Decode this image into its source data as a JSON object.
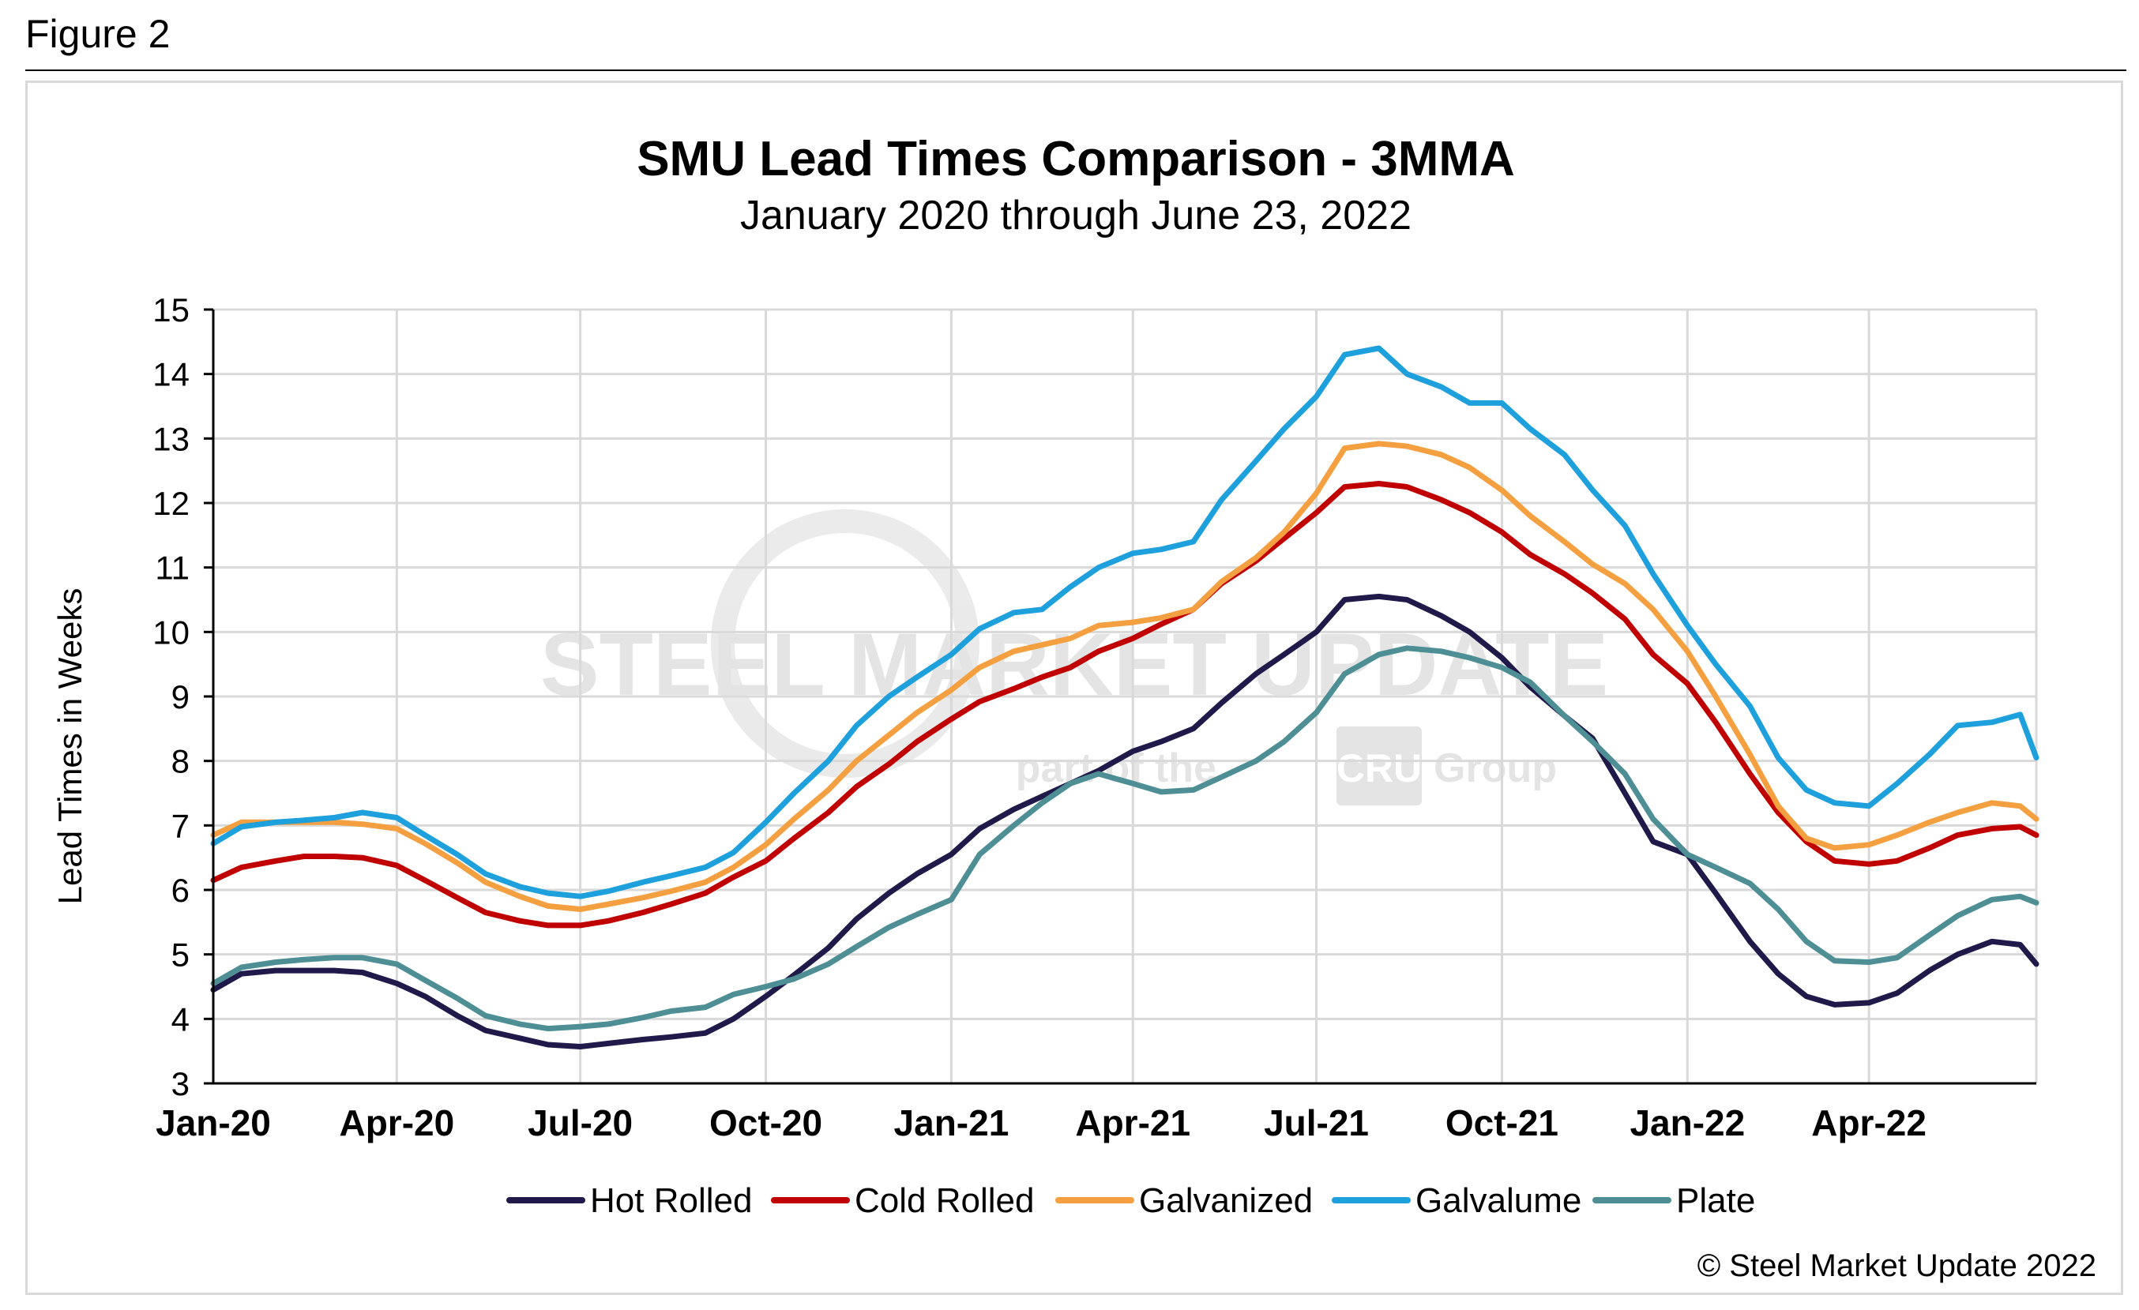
{
  "figure_label": "Figure 2",
  "copyright": "© Steel Market Update 2022",
  "watermark": {
    "main": "STEEL MARKET UPDATE",
    "sub_before": "part of the",
    "sub_logo": "CRU",
    "sub_after": "Group"
  },
  "colors": {
    "grid": "#d9d9d9",
    "axis": "#000000",
    "hot_rolled": "#1f1a4a",
    "cold_rolled": "#c00000",
    "galvanized": "#f4a040",
    "galvalume": "#1ea0dc",
    "plate": "#4d8f94"
  },
  "chart_data": {
    "type": "line",
    "title": "SMU Lead Times Comparison - 3MMA",
    "subtitle": "January 2020 through June 23, 2022",
    "xlabel": "",
    "ylabel": "Lead Times in Weeks",
    "ylim": [
      3,
      15
    ],
    "yticks": [
      3,
      4,
      5,
      6,
      7,
      8,
      9,
      10,
      11,
      12,
      13,
      14,
      15
    ],
    "x_range": [
      "2020-01-01",
      "2022-06-23"
    ],
    "xticks": [
      {
        "date": "2020-01-01",
        "label": "Jan-20"
      },
      {
        "date": "2020-04-01",
        "label": "Apr-20"
      },
      {
        "date": "2020-07-01",
        "label": "Jul-20"
      },
      {
        "date": "2020-10-01",
        "label": "Oct-20"
      },
      {
        "date": "2021-01-01",
        "label": "Jan-21"
      },
      {
        "date": "2021-04-01",
        "label": "Apr-21"
      },
      {
        "date": "2021-07-01",
        "label": "Jul-21"
      },
      {
        "date": "2021-10-01",
        "label": "Oct-21"
      },
      {
        "date": "2022-01-01",
        "label": "Jan-22"
      },
      {
        "date": "2022-04-01",
        "label": "Apr-22"
      }
    ],
    "grid": true,
    "legend_position": "bottom",
    "x": [
      "2020-01-01",
      "2020-01-15",
      "2020-02-01",
      "2020-02-15",
      "2020-03-01",
      "2020-03-15",
      "2020-04-01",
      "2020-04-15",
      "2020-05-01",
      "2020-05-15",
      "2020-06-01",
      "2020-06-15",
      "2020-07-01",
      "2020-07-15",
      "2020-08-01",
      "2020-08-15",
      "2020-09-01",
      "2020-09-15",
      "2020-10-01",
      "2020-10-15",
      "2020-11-01",
      "2020-11-15",
      "2020-12-01",
      "2020-12-15",
      "2021-01-01",
      "2021-01-15",
      "2021-02-01",
      "2021-02-15",
      "2021-03-01",
      "2021-03-15",
      "2021-04-01",
      "2021-04-15",
      "2021-05-01",
      "2021-05-15",
      "2021-06-01",
      "2021-06-15",
      "2021-07-01",
      "2021-07-15",
      "2021-08-01",
      "2021-08-15",
      "2021-09-01",
      "2021-09-15",
      "2021-10-01",
      "2021-10-15",
      "2021-11-01",
      "2021-11-15",
      "2021-12-01",
      "2021-12-15",
      "2022-01-01",
      "2022-01-15",
      "2022-02-01",
      "2022-02-15",
      "2022-03-01",
      "2022-03-15",
      "2022-04-01",
      "2022-04-15",
      "2022-05-01",
      "2022-05-15",
      "2022-06-01",
      "2022-06-15",
      "2022-06-23"
    ],
    "series": [
      {
        "name": "Hot Rolled",
        "color_key": "hot_rolled",
        "values": [
          4.45,
          4.7,
          4.75,
          4.75,
          4.75,
          4.72,
          4.55,
          4.35,
          4.05,
          3.82,
          3.7,
          3.6,
          3.57,
          3.62,
          3.68,
          3.72,
          3.78,
          4.0,
          4.35,
          4.68,
          5.1,
          5.55,
          5.95,
          6.25,
          6.55,
          6.95,
          7.25,
          7.45,
          7.65,
          7.85,
          8.15,
          8.3,
          8.5,
          8.9,
          9.35,
          9.65,
          10.0,
          10.5,
          10.55,
          10.5,
          10.25,
          10.0,
          9.6,
          9.15,
          8.7,
          8.35,
          7.5,
          6.75,
          6.55,
          5.95,
          5.2,
          4.7,
          4.35,
          4.22,
          4.25,
          4.4,
          4.75,
          5.0,
          5.2,
          5.15,
          4.85
        ]
      },
      {
        "name": "Cold Rolled",
        "color_key": "cold_rolled",
        "values": [
          6.15,
          6.35,
          6.45,
          6.52,
          6.52,
          6.5,
          6.38,
          6.15,
          5.88,
          5.65,
          5.52,
          5.45,
          5.45,
          5.52,
          5.65,
          5.78,
          5.95,
          6.2,
          6.45,
          6.8,
          7.2,
          7.6,
          7.95,
          8.3,
          8.65,
          8.92,
          9.12,
          9.3,
          9.45,
          9.7,
          9.9,
          10.12,
          10.35,
          10.75,
          11.1,
          11.45,
          11.85,
          12.25,
          12.3,
          12.25,
          12.05,
          11.85,
          11.55,
          11.2,
          10.9,
          10.6,
          10.2,
          9.65,
          9.2,
          8.6,
          7.8,
          7.2,
          6.75,
          6.45,
          6.4,
          6.45,
          6.65,
          6.85,
          6.95,
          6.98,
          6.85
        ]
      },
      {
        "name": "Galvanized",
        "color_key": "galvanized",
        "values": [
          6.85,
          7.05,
          7.05,
          7.05,
          7.05,
          7.02,
          6.95,
          6.72,
          6.42,
          6.12,
          5.9,
          5.75,
          5.7,
          5.78,
          5.88,
          5.98,
          6.12,
          6.35,
          6.7,
          7.1,
          7.55,
          8.0,
          8.4,
          8.75,
          9.1,
          9.45,
          9.7,
          9.8,
          9.9,
          10.1,
          10.15,
          10.22,
          10.35,
          10.78,
          11.15,
          11.55,
          12.15,
          12.85,
          12.92,
          12.88,
          12.75,
          12.55,
          12.2,
          11.8,
          11.4,
          11.05,
          10.75,
          10.35,
          9.7,
          9.0,
          8.1,
          7.3,
          6.8,
          6.65,
          6.7,
          6.85,
          7.05,
          7.2,
          7.35,
          7.3,
          7.1
        ]
      },
      {
        "name": "Galvalume",
        "color_key": "galvalume",
        "values": [
          6.72,
          6.98,
          7.05,
          7.08,
          7.12,
          7.2,
          7.12,
          6.85,
          6.55,
          6.25,
          6.05,
          5.95,
          5.9,
          5.98,
          6.12,
          6.22,
          6.35,
          6.58,
          7.05,
          7.5,
          8.0,
          8.55,
          9.0,
          9.3,
          9.65,
          10.05,
          10.3,
          10.35,
          10.7,
          11.0,
          11.22,
          11.28,
          11.4,
          12.05,
          12.65,
          13.15,
          13.65,
          14.3,
          14.4,
          14.0,
          13.8,
          13.55,
          13.55,
          13.15,
          12.75,
          12.2,
          11.65,
          10.9,
          10.1,
          9.5,
          8.85,
          8.05,
          7.55,
          7.35,
          7.3,
          7.65,
          8.1,
          8.55,
          8.6,
          8.72,
          8.05
        ]
      },
      {
        "name": "Plate",
        "color_key": "plate",
        "values": [
          4.55,
          4.8,
          4.88,
          4.92,
          4.95,
          4.95,
          4.85,
          4.6,
          4.32,
          4.05,
          3.92,
          3.85,
          3.88,
          3.92,
          4.02,
          4.12,
          4.18,
          4.38,
          4.5,
          4.62,
          4.85,
          5.12,
          5.42,
          5.62,
          5.85,
          6.55,
          7.0,
          7.35,
          7.65,
          7.8,
          7.65,
          7.52,
          7.55,
          7.75,
          8.0,
          8.3,
          8.75,
          9.35,
          9.65,
          9.75,
          9.7,
          9.6,
          9.45,
          9.22,
          8.7,
          8.3,
          7.8,
          7.1,
          6.55,
          6.35,
          6.1,
          5.7,
          5.2,
          4.9,
          4.88,
          4.95,
          5.3,
          5.6,
          5.85,
          5.9,
          5.8
        ]
      }
    ]
  }
}
